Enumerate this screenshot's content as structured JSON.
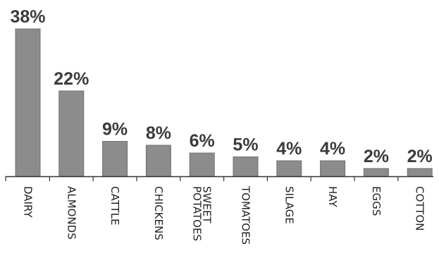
{
  "chart_data": {
    "type": "bar",
    "title": "",
    "xlabel": "",
    "ylabel": "",
    "categories": [
      "DAIRY",
      "ALMONDS",
      "CATTLE",
      "CHICKENS",
      "SWEET POTATOES",
      "TOMATOES",
      "SILAGE",
      "HAY",
      "EGGS",
      "COTTON"
    ],
    "category_lines": [
      [
        "DAIRY"
      ],
      [
        "ALMONDS"
      ],
      [
        "CATTLE"
      ],
      [
        "CHICKENS"
      ],
      [
        "SWEET",
        "POTATOES"
      ],
      [
        "TOMATOES"
      ],
      [
        "SILAGE"
      ],
      [
        "HAY"
      ],
      [
        "EGGS"
      ],
      [
        "COTTON"
      ]
    ],
    "values": [
      38,
      22,
      9,
      8,
      6,
      5,
      4,
      4,
      2,
      2
    ],
    "value_labels": [
      "38%",
      "22%",
      "9%",
      "8%",
      "6%",
      "5%",
      "4%",
      "4%",
      "2%",
      "2%"
    ],
    "ylim": [
      0,
      38
    ],
    "grid": false,
    "legend": "none",
    "colors": {
      "bar": "#8c8c8c",
      "bar_edge": "#6f6f6f",
      "axis": "#333333",
      "label_text": "#3b3b3b"
    }
  }
}
